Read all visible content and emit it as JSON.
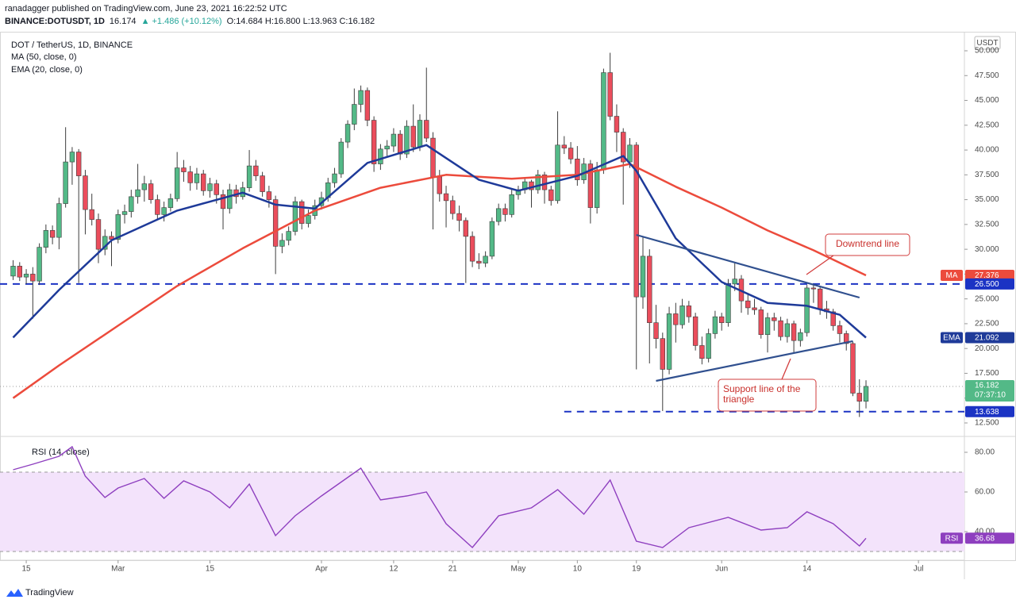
{
  "header": {
    "author_line": "ranadagger published on TradingView.com, June 23, 2021 16:22:52 UTC",
    "symbol": "BINANCE:DOTUSDT, 1D",
    "last": "16.174",
    "change": "▲ +1.486 (+10.12%)",
    "ohlc": "O:14.684 H:16.800 L:13.963 C:16.182"
  },
  "footer": {
    "brand": "TradingView"
  },
  "chart_data": [
    {
      "type": "candlestick",
      "title": "DOT / TetherUS, 1D, BINANCE",
      "currency": "USDT",
      "countdown": "07:37:10",
      "up_color": "#53b987",
      "down_color": "#eb4d5c",
      "x": [
        "2021-02-13",
        "2021-02-14",
        "2021-02-15",
        "2021-02-16",
        "2021-02-17",
        "2021-02-18",
        "2021-02-19",
        "2021-02-20",
        "2021-02-21",
        "2021-02-22",
        "2021-02-23",
        "2021-02-24",
        "2021-02-25",
        "2021-02-26",
        "2021-02-27",
        "2021-02-28",
        "2021-03-01",
        "2021-03-02",
        "2021-03-03",
        "2021-03-04",
        "2021-03-05",
        "2021-03-06",
        "2021-03-07",
        "2021-03-08",
        "2021-03-09",
        "2021-03-10",
        "2021-03-11",
        "2021-03-12",
        "2021-03-13",
        "2021-03-14",
        "2021-03-15",
        "2021-03-16",
        "2021-03-17",
        "2021-03-18",
        "2021-03-19",
        "2021-03-20",
        "2021-03-21",
        "2021-03-22",
        "2021-03-23",
        "2021-03-24",
        "2021-03-25",
        "2021-03-26",
        "2021-03-27",
        "2021-03-28",
        "2021-03-29",
        "2021-03-30",
        "2021-03-31",
        "2021-04-01",
        "2021-04-02",
        "2021-04-03",
        "2021-04-04",
        "2021-04-05",
        "2021-04-06",
        "2021-04-07",
        "2021-04-08",
        "2021-04-09",
        "2021-04-10",
        "2021-04-11",
        "2021-04-12",
        "2021-04-13",
        "2021-04-14",
        "2021-04-15",
        "2021-04-16",
        "2021-04-17",
        "2021-04-18",
        "2021-04-19",
        "2021-04-20",
        "2021-04-21",
        "2021-04-22",
        "2021-04-23",
        "2021-04-24",
        "2021-04-25",
        "2021-04-26",
        "2021-04-27",
        "2021-04-28",
        "2021-04-29",
        "2021-04-30",
        "2021-05-01",
        "2021-05-02",
        "2021-05-03",
        "2021-05-04",
        "2021-05-05",
        "2021-05-06",
        "2021-05-07",
        "2021-05-08",
        "2021-05-09",
        "2021-05-10",
        "2021-05-11",
        "2021-05-12",
        "2021-05-13",
        "2021-05-14",
        "2021-05-15",
        "2021-05-16",
        "2021-05-17",
        "2021-05-18",
        "2021-05-19",
        "2021-05-20",
        "2021-05-21",
        "2021-05-22",
        "2021-05-23",
        "2021-05-24",
        "2021-05-25",
        "2021-05-26",
        "2021-05-27",
        "2021-05-28",
        "2021-05-29",
        "2021-05-30",
        "2021-05-31",
        "2021-06-01",
        "2021-06-02",
        "2021-06-03",
        "2021-06-04",
        "2021-06-05",
        "2021-06-06",
        "2021-06-07",
        "2021-06-08",
        "2021-06-09",
        "2021-06-10",
        "2021-06-11",
        "2021-06-12",
        "2021-06-13",
        "2021-06-14",
        "2021-06-15",
        "2021-06-16",
        "2021-06-17",
        "2021-06-18",
        "2021-06-19",
        "2021-06-20",
        "2021-06-21",
        "2021-06-22",
        "2021-06-23"
      ],
      "open": [
        27.3,
        28.3,
        27.2,
        27.5,
        26.8,
        30.2,
        31.9,
        31.2,
        34.6,
        38.8,
        39.8,
        37.4,
        34.0,
        33.0,
        30.0,
        31.3,
        31.0,
        33.5,
        33.8,
        35.3,
        36.0,
        36.6,
        35.0,
        33.5,
        34.2,
        35.1,
        38.2,
        37.8,
        36.7,
        37.6,
        35.9,
        36.6,
        35.5,
        34.1,
        36.0,
        35.3,
        36.2,
        38.4,
        37.4,
        35.8,
        35.0,
        30.3,
        30.9,
        31.8,
        34.8,
        32.6,
        33.4,
        34.4,
        35.2,
        36.7,
        37.6,
        40.8,
        42.6,
        44.6,
        46.0,
        43.0,
        38.6,
        40.1,
        40.4,
        41.6,
        39.6,
        42.4,
        40.3,
        43.0,
        41.2,
        37.3,
        35.6,
        34.9,
        33.6,
        32.9,
        31.3,
        28.8,
        28.6,
        29.3,
        32.8,
        34.1,
        33.5,
        35.5,
        36.0,
        36.8,
        36.0,
        37.5,
        36.0,
        34.9,
        40.5,
        40.2,
        39.1,
        37.0,
        38.6,
        34.2,
        38.0,
        47.8,
        43.4,
        41.8,
        38.8,
        40.5,
        25.2,
        29.3,
        22.6,
        21.0,
        17.9,
        23.5,
        22.4,
        24.3,
        23.2,
        20.3,
        19.0,
        21.5,
        23.2,
        22.6,
        26.5,
        27.0,
        24.8,
        24.1,
        23.9,
        21.4,
        23.1,
        22.8,
        21.2,
        22.5,
        20.8,
        21.6,
        26.1,
        26.0,
        24.0,
        23.7,
        22.3,
        21.5,
        20.5,
        15.5,
        14.684
      ],
      "high": [
        28.9,
        28.7,
        28.0,
        28.2,
        30.6,
        32.5,
        32.4,
        35.2,
        42.3,
        40.3,
        40.1,
        38.0,
        35.6,
        33.6,
        32.0,
        31.8,
        34.0,
        34.5,
        36.0,
        38.6,
        37.4,
        37.0,
        35.5,
        34.8,
        35.6,
        39.8,
        39.0,
        38.4,
        38.2,
        38.0,
        37.2,
        37.0,
        36.0,
        36.6,
        36.5,
        36.8,
        40.0,
        39.0,
        37.8,
        36.4,
        35.4,
        31.6,
        32.3,
        35.3,
        35.0,
        34.0,
        35.0,
        35.8,
        37.2,
        38.2,
        41.2,
        43.0,
        46.2,
        46.5,
        46.3,
        43.4,
        40.6,
        41.0,
        42.2,
        42.0,
        43.0,
        44.6,
        43.6,
        48.3,
        41.8,
        38.0,
        36.4,
        35.4,
        34.4,
        33.2,
        31.8,
        29.6,
        29.8,
        33.2,
        34.6,
        34.6,
        36.0,
        36.4,
        37.2,
        37.0,
        38.0,
        37.8,
        36.4,
        43.9,
        41.4,
        40.8,
        40.4,
        39.2,
        39.0,
        38.8,
        48.2,
        49.8,
        44.6,
        42.2,
        41.2,
        40.8,
        31.3,
        30.0,
        24.4,
        21.6,
        24.2,
        24.6,
        25.0,
        24.8,
        23.6,
        21.2,
        22.0,
        23.8,
        23.6,
        27.0,
        28.6,
        27.4,
        25.6,
        25.0,
        24.2,
        23.6,
        23.6,
        23.2,
        23.0,
        22.8,
        22.0,
        26.4,
        26.4,
        26.2,
        24.8,
        24.0,
        22.8,
        21.8,
        20.7,
        16.9,
        16.8
      ],
      "low": [
        26.9,
        26.8,
        26.5,
        23.0,
        26.4,
        29.6,
        30.5,
        30.0,
        34.2,
        36.5,
        26.6,
        31.5,
        32.4,
        28.6,
        29.4,
        28.3,
        30.6,
        32.6,
        33.2,
        34.6,
        34.8,
        34.6,
        33.0,
        32.8,
        33.8,
        34.8,
        36.8,
        35.9,
        36.0,
        35.4,
        35.2,
        34.6,
        32.0,
        33.6,
        34.6,
        35.0,
        35.8,
        36.9,
        35.3,
        34.2,
        27.5,
        29.6,
        30.4,
        31.4,
        32.0,
        32.2,
        33.0,
        34.0,
        34.8,
        36.2,
        37.2,
        40.2,
        42.0,
        43.8,
        42.4,
        37.8,
        38.0,
        39.4,
        39.8,
        39.0,
        39.2,
        39.8,
        39.9,
        40.8,
        32.0,
        34.8,
        32.2,
        33.0,
        31.8,
        26.6,
        28.2,
        28.0,
        28.2,
        29.0,
        32.4,
        32.8,
        33.2,
        35.0,
        35.6,
        34.2,
        35.6,
        34.6,
        34.4,
        34.6,
        39.6,
        38.6,
        36.4,
        36.6,
        32.6,
        33.6,
        37.6,
        43.0,
        39.8,
        34.5,
        38.2,
        17.9,
        24.0,
        18.5,
        20.0,
        13.7,
        17.4,
        20.6,
        22.0,
        22.6,
        19.8,
        18.4,
        18.6,
        21.0,
        21.8,
        22.2,
        25.8,
        23.6,
        23.4,
        23.4,
        21.0,
        19.6,
        21.8,
        20.8,
        20.6,
        19.6,
        20.2,
        21.2,
        24.6,
        23.4,
        23.0,
        21.8,
        20.6,
        19.8,
        15.2,
        13.1,
        13.963
      ],
      "close": [
        28.3,
        27.2,
        27.5,
        26.8,
        30.2,
        31.9,
        31.2,
        34.6,
        38.8,
        39.8,
        37.4,
        34.0,
        33.0,
        30.0,
        31.3,
        31.0,
        33.5,
        33.8,
        35.3,
        36.0,
        36.6,
        35.0,
        33.5,
        34.2,
        35.1,
        38.2,
        37.8,
        36.7,
        37.6,
        35.9,
        36.6,
        35.5,
        34.1,
        36.0,
        35.3,
        36.2,
        38.4,
        37.4,
        35.8,
        35.0,
        30.3,
        30.9,
        31.8,
        34.8,
        32.6,
        33.4,
        34.4,
        35.2,
        36.7,
        37.6,
        40.8,
        42.6,
        44.6,
        46.0,
        43.0,
        38.6,
        40.1,
        40.4,
        41.6,
        39.6,
        42.4,
        40.3,
        43.0,
        41.2,
        37.3,
        35.6,
        34.9,
        33.6,
        32.9,
        31.3,
        28.8,
        28.6,
        29.3,
        32.8,
        34.1,
        33.5,
        35.5,
        36.0,
        36.8,
        36.0,
        37.5,
        36.0,
        34.9,
        40.5,
        40.2,
        39.1,
        37.0,
        38.6,
        34.2,
        38.0,
        47.8,
        43.4,
        41.8,
        38.8,
        40.5,
        25.2,
        29.3,
        22.6,
        21.0,
        17.9,
        23.5,
        22.4,
        24.3,
        23.2,
        20.3,
        19.0,
        21.5,
        23.2,
        22.6,
        26.5,
        27.0,
        24.8,
        24.1,
        23.9,
        21.4,
        23.1,
        22.8,
        21.2,
        22.5,
        20.8,
        21.6,
        26.1,
        26.0,
        24.0,
        23.7,
        22.3,
        21.5,
        20.5,
        15.5,
        14.684,
        16.182
      ],
      "series": [
        {
          "name": "MA (50, close, 0)",
          "tag": "MA",
          "color": "#ec4b3c",
          "x": [
            "2021-02-13",
            "2021-02-20",
            "2021-03-01",
            "2021-03-10",
            "2021-03-20",
            "2021-03-31",
            "2021-04-10",
            "2021-04-20",
            "2021-04-30",
            "2021-05-10",
            "2021-05-18",
            "2021-05-25",
            "2021-06-01",
            "2021-06-08",
            "2021-06-15",
            "2021-06-23"
          ],
          "values": [
            15.0,
            18.3,
            22.3,
            26.3,
            30.1,
            33.9,
            36.2,
            37.5,
            37.1,
            37.5,
            38.6,
            36.3,
            34.2,
            31.9,
            29.9,
            27.376
          ]
        },
        {
          "name": "EMA (20, close, 0)",
          "tag": "EMA",
          "color": "#1e3a99",
          "x": [
            "2021-02-13",
            "2021-02-20",
            "2021-02-28",
            "2021-03-10",
            "2021-03-20",
            "2021-03-25",
            "2021-03-31",
            "2021-04-08",
            "2021-04-17",
            "2021-04-25",
            "2021-05-01",
            "2021-05-10",
            "2021-05-17",
            "2021-05-19",
            "2021-05-25",
            "2021-06-01",
            "2021-06-08",
            "2021-06-14",
            "2021-06-19",
            "2021-06-23"
          ],
          "values": [
            21.1,
            25.9,
            30.9,
            33.9,
            35.7,
            34.5,
            34.1,
            38.7,
            40.5,
            37.0,
            35.9,
            37.4,
            39.4,
            37.9,
            31.1,
            26.7,
            24.6,
            24.3,
            23.4,
            21.092
          ]
        }
      ],
      "levels": [
        {
          "value": 26.5,
          "label": "26.500"
        },
        {
          "value": 13.638,
          "label": "13.638",
          "start": "2021-05-08"
        }
      ],
      "level_color": "#1b33c4",
      "trendlines": [
        {
          "x": [
            "2021-05-19",
            "2021-06-22"
          ],
          "y": [
            31.45,
            25.13
          ]
        },
        {
          "x": [
            "2021-05-22",
            "2021-06-21"
          ],
          "y": [
            16.74,
            20.74
          ]
        }
      ],
      "trendline_color": "#30508f",
      "annotations": [
        {
          "text": "Downtrend line"
        },
        {
          "text": "Support line of the triangle"
        }
      ],
      "xlim": [
        "2021-02-11",
        "2021-07-08"
      ],
      "xticks": [
        {
          "value": "2021-02-15",
          "label": "15"
        },
        {
          "value": "2021-03-01",
          "label": "Mar"
        },
        {
          "value": "2021-03-15",
          "label": "15"
        },
        {
          "value": "2021-04-01",
          "label": "Apr"
        },
        {
          "value": "2021-04-12",
          "label": "12"
        },
        {
          "value": "2021-04-21",
          "label": "21"
        },
        {
          "value": "2021-05-01",
          "label": "May"
        },
        {
          "value": "2021-05-10",
          "label": "10"
        },
        {
          "value": "2021-05-19",
          "label": "19"
        },
        {
          "value": "2021-06-01",
          "label": "Jun"
        },
        {
          "value": "2021-06-14",
          "label": "14"
        },
        {
          "value": "2021-07-01",
          "label": "Jul"
        }
      ],
      "ylim": [
        11.3,
        51.76
      ],
      "yticks": [
        {
          "value": 12.5,
          "label": "12.500"
        },
        {
          "value": 15,
          "label": "15.000"
        },
        {
          "value": 17.5,
          "label": "17.500"
        },
        {
          "value": 20,
          "label": "20.000"
        },
        {
          "value": 22.5,
          "label": "22.500"
        },
        {
          "value": 25,
          "label": "25.000"
        },
        {
          "value": 27.5,
          "label": "27.500"
        },
        {
          "value": 30,
          "label": "30.000"
        },
        {
          "value": 32.5,
          "label": "32.500"
        },
        {
          "value": 35,
          "label": "35.000"
        },
        {
          "value": 37.5,
          "label": "37.500"
        },
        {
          "value": 40,
          "label": "40.000"
        },
        {
          "value": 42.5,
          "label": "42.500"
        },
        {
          "value": 45,
          "label": "45.000"
        },
        {
          "value": 47.5,
          "label": "47.500"
        },
        {
          "value": 50,
          "label": "50.000"
        }
      ]
    },
    {
      "type": "line",
      "title": "RSI (14, close)",
      "tag": "RSI",
      "color": "#8e3fbf",
      "band": [
        30,
        70
      ],
      "band_color": "#f3e3fb",
      "x": [
        "2021-02-13",
        "2021-02-16",
        "2021-02-20",
        "2021-02-22",
        "2021-02-24",
        "2021-02-27",
        "2021-03-01",
        "2021-03-05",
        "2021-03-08",
        "2021-03-11",
        "2021-03-15",
        "2021-03-18",
        "2021-03-21",
        "2021-03-25",
        "2021-03-28",
        "2021-04-01",
        "2021-04-07",
        "2021-04-10",
        "2021-04-14",
        "2021-04-17",
        "2021-04-20",
        "2021-04-24",
        "2021-04-28",
        "2021-05-03",
        "2021-05-07",
        "2021-05-11",
        "2021-05-15",
        "2021-05-19",
        "2021-05-23",
        "2021-05-27",
        "2021-06-02",
        "2021-06-07",
        "2021-06-11",
        "2021-06-14",
        "2021-06-18",
        "2021-06-22",
        "2021-06-23"
      ],
      "values": [
        71.2,
        74,
        78,
        82.8,
        68,
        57.2,
        62,
        66.8,
        56.8,
        65.6,
        60,
        52,
        64,
        38,
        48,
        58,
        72,
        56,
        58,
        60,
        44,
        32,
        48,
        52,
        61.2,
        48.8,
        66,
        35.2,
        32,
        42,
        47.2,
        40.8,
        42,
        50,
        44,
        32.8,
        36.68
      ],
      "xlim": [
        "2021-02-11",
        "2021-07-08"
      ],
      "ylim": [
        26,
        87.2
      ],
      "yticks": [
        {
          "value": 40,
          "label": "40.00"
        },
        {
          "value": 60,
          "label": "60.00"
        },
        {
          "value": 80,
          "label": "80.00"
        }
      ]
    }
  ]
}
